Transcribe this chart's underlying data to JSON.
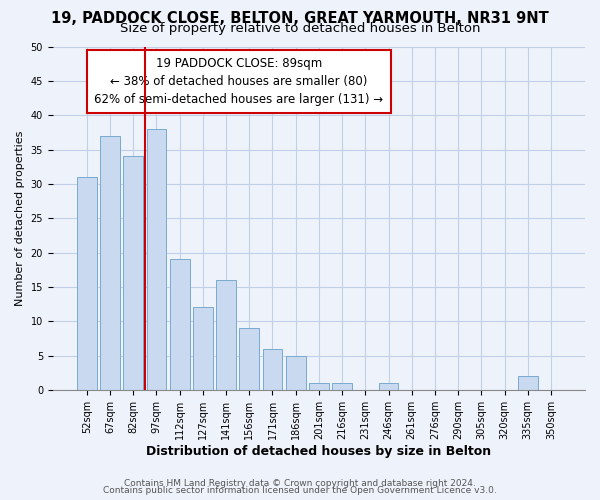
{
  "title": "19, PADDOCK CLOSE, BELTON, GREAT YARMOUTH, NR31 9NT",
  "subtitle": "Size of property relative to detached houses in Belton",
  "xlabel": "Distribution of detached houses by size in Belton",
  "ylabel": "Number of detached properties",
  "bar_labels": [
    "52sqm",
    "67sqm",
    "82sqm",
    "97sqm",
    "112sqm",
    "127sqm",
    "141sqm",
    "156sqm",
    "171sqm",
    "186sqm",
    "201sqm",
    "216sqm",
    "231sqm",
    "246sqm",
    "261sqm",
    "276sqm",
    "290sqm",
    "305sqm",
    "320sqm",
    "335sqm",
    "350sqm"
  ],
  "bar_values": [
    31,
    37,
    34,
    38,
    19,
    12,
    16,
    9,
    6,
    5,
    1,
    1,
    0,
    1,
    0,
    0,
    0,
    0,
    0,
    2,
    0
  ],
  "bar_color": "#c8d9f0",
  "bar_edge_color": "#7aaad0",
  "vline_color": "#cc0000",
  "annotation_title": "19 PADDOCK CLOSE: 89sqm",
  "annotation_line1": "← 38% of detached houses are smaller (80)",
  "annotation_line2": "62% of semi-detached houses are larger (131) →",
  "annotation_box_color": "#ffffff",
  "annotation_border_color": "#cc0000",
  "ylim": [
    0,
    50
  ],
  "yticks": [
    0,
    5,
    10,
    15,
    20,
    25,
    30,
    35,
    40,
    45,
    50
  ],
  "grid_color": "#c0d0e8",
  "footer1": "Contains HM Land Registry data © Crown copyright and database right 2024.",
  "footer2": "Contains public sector information licensed under the Open Government Licence v3.0.",
  "bg_color": "#eef2fb",
  "title_fontsize": 10.5,
  "subtitle_fontsize": 9.5,
  "xlabel_fontsize": 9,
  "ylabel_fontsize": 8,
  "tick_fontsize": 7,
  "annotation_fontsize": 8.5,
  "footer_fontsize": 6.5
}
